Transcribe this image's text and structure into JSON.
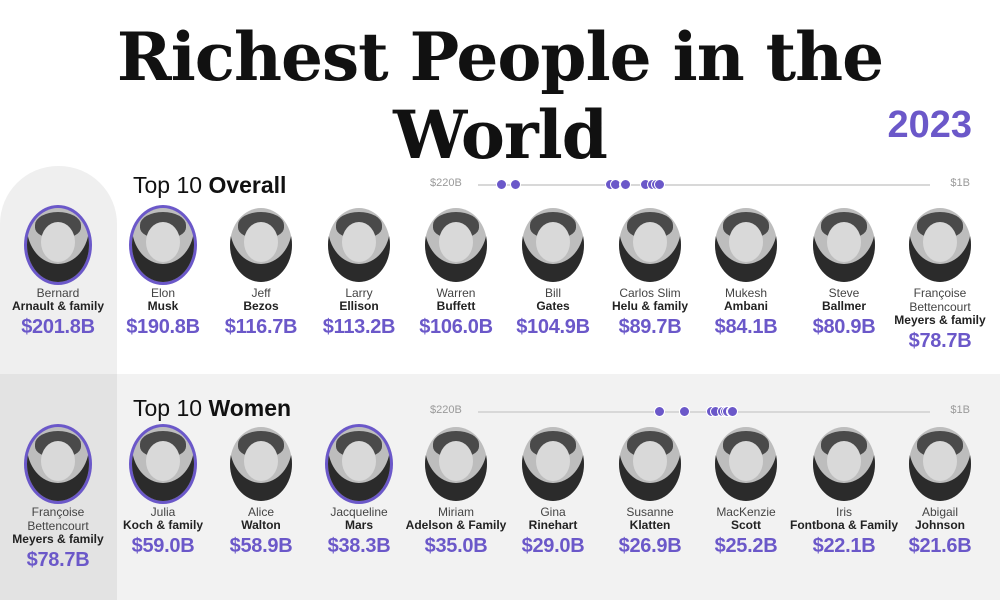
{
  "title": "Richest People in the World",
  "year": "2023",
  "accent_color": "#6b58c9",
  "sections": [
    {
      "title_light": "Top 10",
      "title_bold": "Overall",
      "scale_max": "$220B",
      "scale_min": "$1B",
      "people": [
        {
          "first": "Bernard",
          "last": "Arnault & family",
          "value": "$201.8B",
          "net_worth_b": 201.8
        },
        {
          "first": "Elon",
          "last": "Musk",
          "value": "$190.8B",
          "net_worth_b": 190.8
        },
        {
          "first": "Jeff",
          "last": "Bezos",
          "value": "$116.7B",
          "net_worth_b": 116.7
        },
        {
          "first": "Larry",
          "last": "Ellison",
          "value": "$113.2B",
          "net_worth_b": 113.2
        },
        {
          "first": "Warren",
          "last": "Buffett",
          "value": "$106.0B",
          "net_worth_b": 106.0
        },
        {
          "first": "Bill",
          "last": "Gates",
          "value": "$104.9B",
          "net_worth_b": 104.9
        },
        {
          "first": "Carlos Slim",
          "last": "Helu & family",
          "value": "$89.7B",
          "net_worth_b": 89.7
        },
        {
          "first": "Mukesh",
          "last": "Ambani",
          "value": "$84.1B",
          "net_worth_b": 84.1
        },
        {
          "first": "Steve",
          "last": "Ballmer",
          "value": "$80.9B",
          "net_worth_b": 80.9
        },
        {
          "first": "Françoise Bettencourt",
          "last": "Meyers & family",
          "value": "$78.7B",
          "net_worth_b": 78.7
        }
      ]
    },
    {
      "title_light": "Top 10",
      "title_bold": "Women",
      "scale_max": "$220B",
      "scale_min": "$1B",
      "people": [
        {
          "first": "Françoise Bettencourt",
          "last": "Meyers & family",
          "value": "$78.7B",
          "net_worth_b": 78.7
        },
        {
          "first": "Julia",
          "last": "Koch & family",
          "value": "$59.0B",
          "net_worth_b": 59.0
        },
        {
          "first": "Alice",
          "last": "Walton",
          "value": "$58.9B",
          "net_worth_b": 58.9
        },
        {
          "first": "Jacqueline",
          "last": "Mars",
          "value": "$38.3B",
          "net_worth_b": 38.3
        },
        {
          "first": "Miriam",
          "last": "Adelson & Family",
          "value": "$35.0B",
          "net_worth_b": 35.0
        },
        {
          "first": "Gina",
          "last": "Rinehart",
          "value": "$29.0B",
          "net_worth_b": 29.0
        },
        {
          "first": "Susanne",
          "last": "Klatten",
          "value": "$26.9B",
          "net_worth_b": 26.9
        },
        {
          "first": "MacKenzie",
          "last": "Scott",
          "value": "$25.2B",
          "net_worth_b": 25.2
        },
        {
          "first": "Iris",
          "last": "Fontbona & Family",
          "value": "$22.1B",
          "net_worth_b": 22.1
        },
        {
          "first": "Abigail",
          "last": "Johnson",
          "value": "$21.6B",
          "net_worth_b": 21.6
        }
      ]
    }
  ]
}
